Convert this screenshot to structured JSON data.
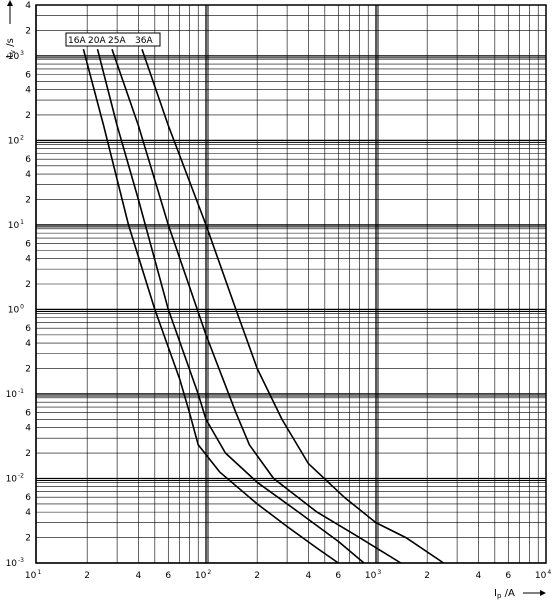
{
  "chart_data": {
    "type": "line",
    "title": "",
    "xlabel": "I_p / A",
    "ylabel": "t_v / s",
    "x_scale": "log",
    "y_scale": "log",
    "xlim": [
      10,
      10000
    ],
    "ylim": [
      0.001,
      4000
    ],
    "grid": true,
    "legend_position": "top-left",
    "x_ticks": [
      {
        "value": 10,
        "base": "10",
        "exp": "1"
      },
      {
        "value": 20,
        "label": "2"
      },
      {
        "value": 40,
        "label": "4"
      },
      {
        "value": 60,
        "label": "6"
      },
      {
        "value": 100,
        "base": "10",
        "exp": "2"
      },
      {
        "value": 200,
        "label": "2"
      },
      {
        "value": 400,
        "label": "4"
      },
      {
        "value": 600,
        "label": "6"
      },
      {
        "value": 1000,
        "base": "10",
        "exp": "3"
      },
      {
        "value": 2000,
        "label": "2"
      },
      {
        "value": 4000,
        "label": "4"
      },
      {
        "value": 6000,
        "label": "6"
      },
      {
        "value": 10000,
        "base": "10",
        "exp": "4"
      }
    ],
    "y_ticks": [
      {
        "value": 0.001,
        "base": "10",
        "exp": "-3"
      },
      {
        "value": 0.002,
        "label": "2"
      },
      {
        "value": 0.004,
        "label": "4"
      },
      {
        "value": 0.006,
        "label": "6"
      },
      {
        "value": 0.01,
        "base": "10",
        "exp": "-2"
      },
      {
        "value": 0.02,
        "label": "2"
      },
      {
        "value": 0.04,
        "label": "4"
      },
      {
        "value": 0.06,
        "label": "6"
      },
      {
        "value": 0.1,
        "base": "10",
        "exp": "-1"
      },
      {
        "value": 0.2,
        "label": "2"
      },
      {
        "value": 0.4,
        "label": "4"
      },
      {
        "value": 0.6,
        "label": "6"
      },
      {
        "value": 1,
        "base": "10",
        "exp": "0"
      },
      {
        "value": 2,
        "label": "2"
      },
      {
        "value": 4,
        "label": "4"
      },
      {
        "value": 6,
        "label": "6"
      },
      {
        "value": 10,
        "base": "10",
        "exp": "1"
      },
      {
        "value": 20,
        "label": "2"
      },
      {
        "value": 40,
        "label": "4"
      },
      {
        "value": 60,
        "label": "6"
      },
      {
        "value": 100,
        "base": "10",
        "exp": "2"
      },
      {
        "value": 200,
        "label": "2"
      },
      {
        "value": 400,
        "label": "4"
      },
      {
        "value": 600,
        "label": "6"
      },
      {
        "value": 1000,
        "base": "10",
        "exp": "3"
      },
      {
        "value": 2000,
        "label": "2"
      },
      {
        "value": 4000,
        "label": "4"
      }
    ],
    "legend": [
      "16A",
      "20A",
      "25A",
      "36A"
    ],
    "series": [
      {
        "name": "16A",
        "points": [
          [
            19,
            1200
          ],
          [
            25,
            150
          ],
          [
            35,
            10
          ],
          [
            50,
            1
          ],
          [
            70,
            0.15
          ],
          [
            80,
            0.06
          ],
          [
            90,
            0.025
          ],
          [
            120,
            0.012
          ],
          [
            200,
            0.005
          ],
          [
            300,
            0.0027
          ],
          [
            450,
            0.0015
          ],
          [
            600,
            0.001
          ]
        ]
      },
      {
        "name": "20A",
        "points": [
          [
            23,
            1200
          ],
          [
            30,
            150
          ],
          [
            40,
            20
          ],
          [
            60,
            1
          ],
          [
            90,
            0.1
          ],
          [
            100,
            0.05
          ],
          [
            130,
            0.02
          ],
          [
            200,
            0.009
          ],
          [
            350,
            0.004
          ],
          [
            600,
            0.0018
          ],
          [
            850,
            0.001
          ]
        ]
      },
      {
        "name": "25A",
        "points": [
          [
            28,
            1200
          ],
          [
            40,
            150
          ],
          [
            60,
            10
          ],
          [
            100,
            0.5
          ],
          [
            150,
            0.06
          ],
          [
            180,
            0.025
          ],
          [
            250,
            0.01
          ],
          [
            450,
            0.004
          ],
          [
            800,
            0.002
          ],
          [
            1400,
            0.001
          ]
        ]
      },
      {
        "name": "36A",
        "points": [
          [
            42,
            1200
          ],
          [
            60,
            150
          ],
          [
            100,
            10
          ],
          [
            150,
            1
          ],
          [
            200,
            0.2
          ],
          [
            280,
            0.05
          ],
          [
            400,
            0.015
          ],
          [
            650,
            0.006
          ],
          [
            1000,
            0.003
          ],
          [
            1500,
            0.002
          ],
          [
            2500,
            0.001
          ]
        ]
      }
    ]
  }
}
